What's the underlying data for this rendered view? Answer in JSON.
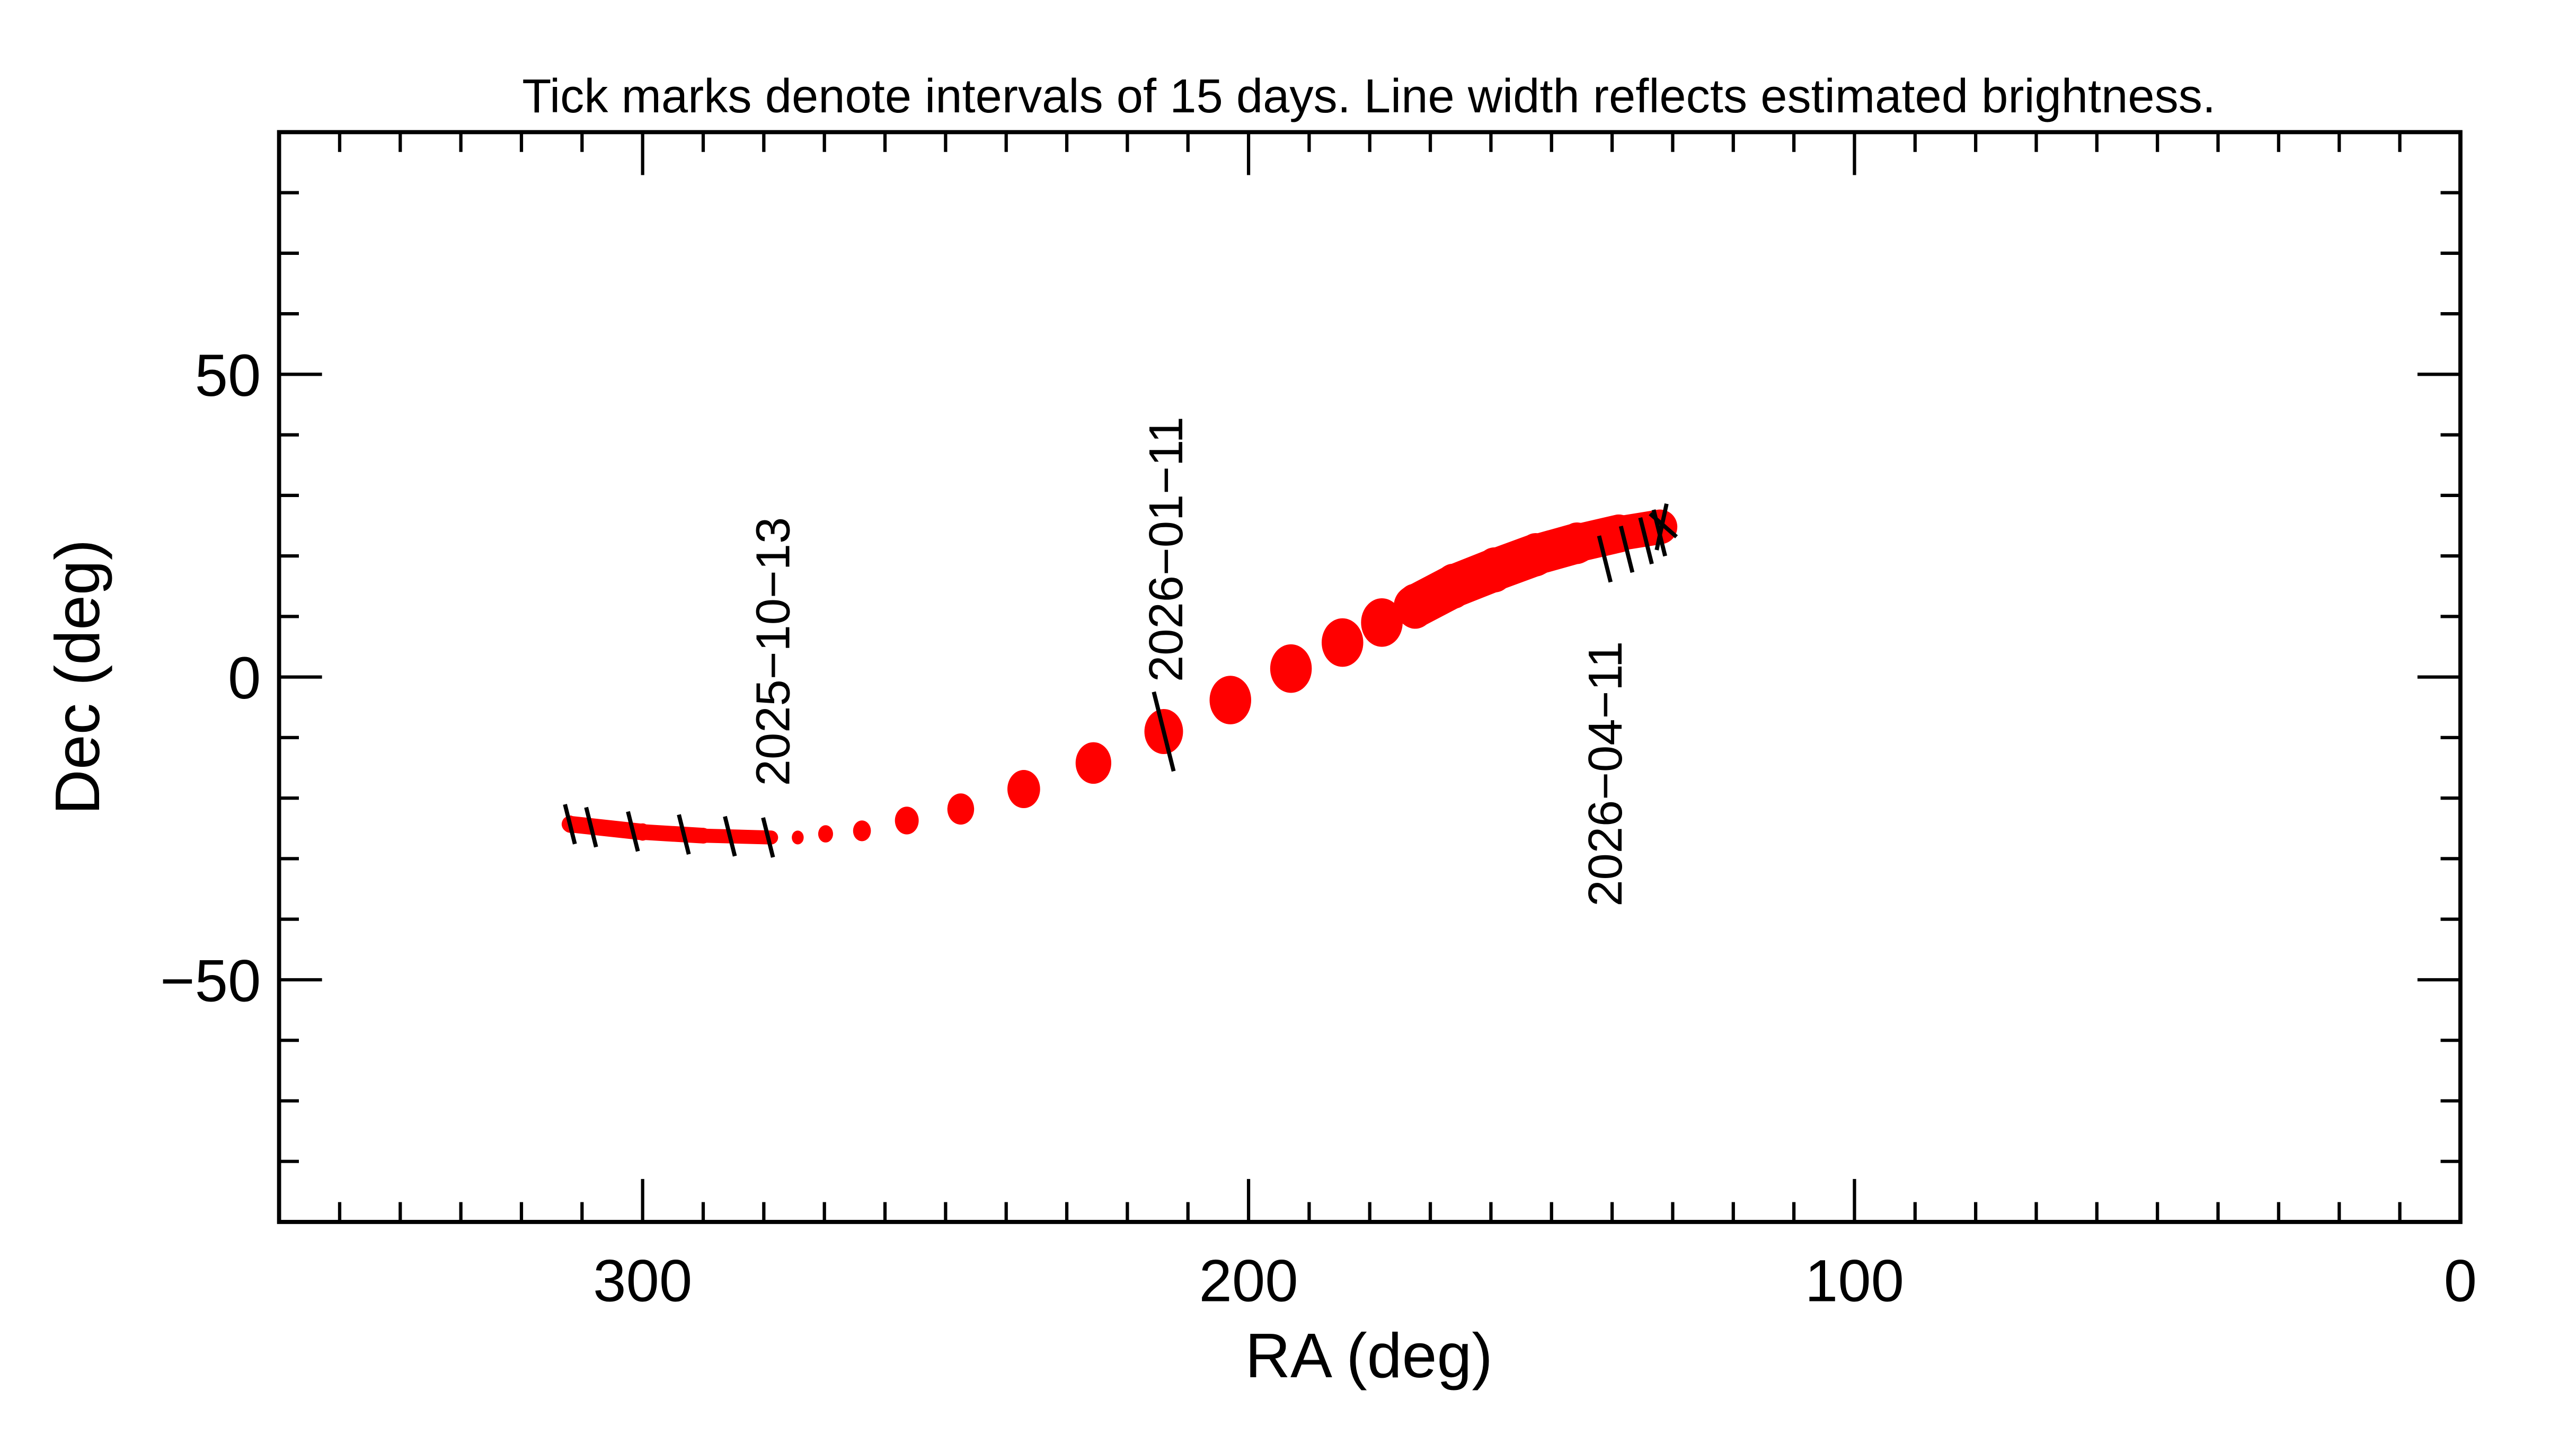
{
  "chart_data": {
    "type": "scatter",
    "title": "Tick marks denote intervals of 15 days.  Line width reflects estimated brightness.",
    "xlabel": "RA (deg)",
    "ylabel": "Dec (deg)",
    "xlim": [
      360,
      0
    ],
    "ylim": [
      -90,
      90
    ],
    "x_reversed": true,
    "xticks": [
      300,
      200,
      100,
      0
    ],
    "xtick_labels": [
      "300",
      "200",
      "100",
      "0"
    ],
    "yticks": [
      50,
      0,
      -50
    ],
    "ytick_labels": [
      "50",
      "0",
      "−50"
    ],
    "minor_tick_interval": 10,
    "grid": false,
    "track_color": "#ff0000",
    "tick_color": "#000000",
    "series": [
      {
        "points": [
          {
            "ra": 312.0,
            "dec": -24.3,
            "brightness": 5
          },
          {
            "ra": 300.0,
            "dec": -25.6,
            "brightness": 5
          },
          {
            "ra": 290.0,
            "dec": -26.2,
            "brightness": 4.5
          },
          {
            "ra": 278.8,
            "dec": -26.5,
            "brightness": 4
          },
          {
            "ra": 274.4,
            "dec": -26.5,
            "brightness": 4
          },
          {
            "ra": 269.8,
            "dec": -25.9,
            "brightness": 5
          },
          {
            "ra": 263.8,
            "dec": -25.4,
            "brightness": 6
          },
          {
            "ra": 256.4,
            "dec": -23.7,
            "brightness": 8
          },
          {
            "ra": 247.5,
            "dec": -21.8,
            "brightness": 9
          },
          {
            "ra": 237.1,
            "dec": -18.5,
            "brightness": 11
          },
          {
            "ra": 225.6,
            "dec": -14.2,
            "brightness": 12
          },
          {
            "ra": 214.0,
            "dec": -9.0,
            "brightness": 13
          },
          {
            "ra": 203.0,
            "dec": -3.8,
            "brightness": 14
          },
          {
            "ra": 193.0,
            "dec": 1.4,
            "brightness": 14
          },
          {
            "ra": 184.5,
            "dec": 5.7,
            "brightness": 14
          },
          {
            "ra": 178.0,
            "dec": 9.0,
            "brightness": 14
          },
          {
            "ra": 172.5,
            "dec": 11.7,
            "brightness": 13
          },
          {
            "ra": 166.2,
            "dec": 15.0,
            "brightness": 13
          },
          {
            "ra": 159.4,
            "dec": 17.7,
            "brightness": 13
          },
          {
            "ra": 152.6,
            "dec": 20.2,
            "brightness": 12.5
          },
          {
            "ra": 145.8,
            "dec": 22.1,
            "brightness": 12
          },
          {
            "ra": 138.9,
            "dec": 23.7,
            "brightness": 11
          },
          {
            "ra": 132.1,
            "dec": 24.8,
            "brightness": 10
          }
        ]
      }
    ],
    "interval_ticks": [
      {
        "ra": 312.0,
        "dec": -24.3
      },
      {
        "ra": 308.5,
        "dec": -24.8
      },
      {
        "ra": 301.6,
        "dec": -25.5
      },
      {
        "ra": 293.2,
        "dec": -26.0
      },
      {
        "ra": 285.6,
        "dec": -26.3
      },
      {
        "ra": 279.3,
        "dec": -26.5
      },
      {
        "ra": 214.0,
        "dec": -9.0
      },
      {
        "ra": 141.2,
        "dec": 19.5
      },
      {
        "ra": 137.6,
        "dec": 21.1
      },
      {
        "ra": 134.4,
        "dec": 22.5
      },
      {
        "ra": 132.2,
        "dec": 23.8
      }
    ],
    "annotations": [
      {
        "text": "2025−10−13",
        "ra": 278.8,
        "dec": -26.5
      },
      {
        "text": "2026−01−11",
        "ra": 214.0,
        "dec": -9.0
      },
      {
        "text": "2026−04−11",
        "ra": 141.2,
        "dec": 19.5
      }
    ]
  }
}
